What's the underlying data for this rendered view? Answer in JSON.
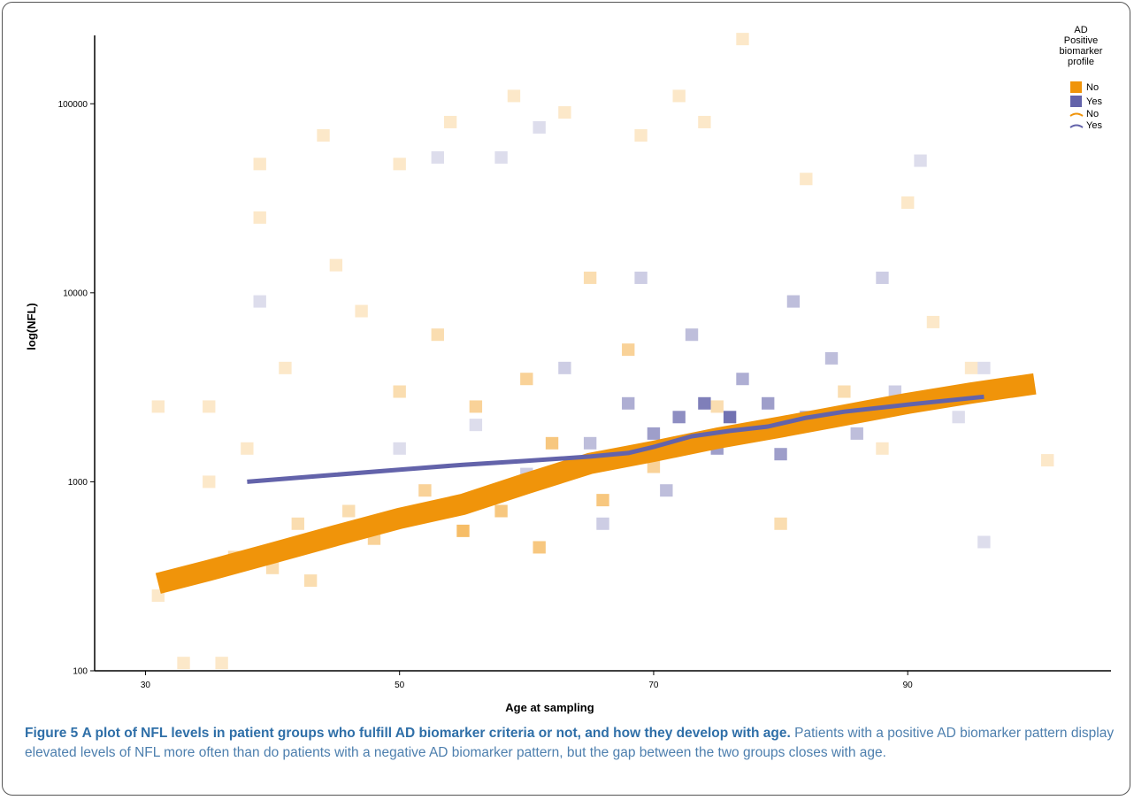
{
  "figure": {
    "label": "Figure 5",
    "title": "A plot of NFL levels in patient groups who fulfill AD biomarker criteria or not, and how they develop with age.",
    "body": "Patients with a positive AD biomarker pattern display elevated levels of NFL more often than do patients with a negative AD biomarker pattern, but the gap between the two groups closes with age."
  },
  "chart_data": {
    "type": "heatmap",
    "subtype": "binned-2d-density-with-trend-lines",
    "xlabel": "Age at sampling",
    "ylabel": "log(NFL)",
    "x_ticks": [
      30,
      50,
      70,
      90
    ],
    "y_ticks": [
      100,
      1000,
      10000,
      100000
    ],
    "xlim": [
      26,
      106
    ],
    "ylim": [
      100,
      230000
    ],
    "y_scale": "log",
    "grid": false,
    "legend": {
      "title": "AD\nPositive\nbiomarker\nprofile",
      "placement": "top-right",
      "fill_entries": [
        {
          "label": "No",
          "color": "#f0940a"
        },
        {
          "label": "Yes",
          "color": "#6363aa"
        }
      ],
      "line_entries": [
        {
          "label": "No",
          "color": "#f0940a"
        },
        {
          "label": "Yes",
          "color": "#6363aa"
        }
      ]
    },
    "series": [
      {
        "name": "No",
        "kind": "trend-line",
        "color": "#f0940a",
        "x": [
          31,
          35,
          40,
          45,
          50,
          55,
          60,
          65,
          70,
          75,
          80,
          85,
          90,
          95,
          100
        ],
        "y": [
          290,
          340,
          420,
          520,
          640,
          760,
          980,
          1250,
          1450,
          1700,
          1950,
          2250,
          2600,
          2950,
          3300
        ]
      },
      {
        "name": "Yes",
        "kind": "trend-line",
        "color": "#6363aa",
        "x": [
          38,
          45,
          50,
          55,
          60,
          65,
          68,
          70,
          73,
          76,
          79,
          82,
          85,
          90,
          96
        ],
        "y": [
          1000,
          1090,
          1160,
          1230,
          1290,
          1360,
          1420,
          1530,
          1740,
          1860,
          1960,
          2180,
          2350,
          2560,
          2820
        ]
      }
    ],
    "density_bins": {
      "x_bin_width": 1,
      "note": "2D binned counts, opacity scales with count",
      "No": [
        {
          "x": 31,
          "y": 2500,
          "c": 1
        },
        {
          "x": 31,
          "y": 250,
          "c": 1
        },
        {
          "x": 33,
          "y": 110,
          "c": 1
        },
        {
          "x": 35,
          "y": 1000,
          "c": 1
        },
        {
          "x": 35,
          "y": 2500,
          "c": 1
        },
        {
          "x": 36,
          "y": 110,
          "c": 1
        },
        {
          "x": 37,
          "y": 400,
          "c": 2
        },
        {
          "x": 38,
          "y": 1500,
          "c": 1
        },
        {
          "x": 39,
          "y": 48000,
          "c": 1
        },
        {
          "x": 39,
          "y": 25000,
          "c": 1
        },
        {
          "x": 40,
          "y": 350,
          "c": 2
        },
        {
          "x": 41,
          "y": 4000,
          "c": 1
        },
        {
          "x": 42,
          "y": 600,
          "c": 2
        },
        {
          "x": 43,
          "y": 300,
          "c": 2
        },
        {
          "x": 44,
          "y": 68000,
          "c": 1
        },
        {
          "x": 45,
          "y": 14000,
          "c": 1
        },
        {
          "x": 46,
          "y": 700,
          "c": 2
        },
        {
          "x": 47,
          "y": 8000,
          "c": 1
        },
        {
          "x": 48,
          "y": 500,
          "c": 3
        },
        {
          "x": 50,
          "y": 48000,
          "c": 1
        },
        {
          "x": 50,
          "y": 3000,
          "c": 2
        },
        {
          "x": 52,
          "y": 900,
          "c": 3
        },
        {
          "x": 53,
          "y": 6000,
          "c": 2
        },
        {
          "x": 54,
          "y": 80000,
          "c": 1
        },
        {
          "x": 55,
          "y": 550,
          "c": 5
        },
        {
          "x": 56,
          "y": 2500,
          "c": 3
        },
        {
          "x": 58,
          "y": 700,
          "c": 4
        },
        {
          "x": 59,
          "y": 110000,
          "c": 1
        },
        {
          "x": 60,
          "y": 3500,
          "c": 3
        },
        {
          "x": 61,
          "y": 450,
          "c": 4
        },
        {
          "x": 62,
          "y": 1600,
          "c": 4
        },
        {
          "x": 63,
          "y": 90000,
          "c": 1
        },
        {
          "x": 65,
          "y": 12000,
          "c": 2
        },
        {
          "x": 66,
          "y": 800,
          "c": 4
        },
        {
          "x": 68,
          "y": 5000,
          "c": 3
        },
        {
          "x": 69,
          "y": 68000,
          "c": 1
        },
        {
          "x": 70,
          "y": 1200,
          "c": 3
        },
        {
          "x": 72,
          "y": 110000,
          "c": 1
        },
        {
          "x": 74,
          "y": 80000,
          "c": 1
        },
        {
          "x": 75,
          "y": 2500,
          "c": 2
        },
        {
          "x": 77,
          "y": 220000,
          "c": 1
        },
        {
          "x": 80,
          "y": 600,
          "c": 2
        },
        {
          "x": 82,
          "y": 40000,
          "c": 1
        },
        {
          "x": 85,
          "y": 3000,
          "c": 2
        },
        {
          "x": 88,
          "y": 1500,
          "c": 1
        },
        {
          "x": 90,
          "y": 30000,
          "c": 1
        },
        {
          "x": 92,
          "y": 7000,
          "c": 1
        },
        {
          "x": 95,
          "y": 4000,
          "c": 1
        },
        {
          "x": 101,
          "y": 1300,
          "c": 1
        }
      ],
      "Yes": [
        {
          "x": 39,
          "y": 9000,
          "c": 1
        },
        {
          "x": 50,
          "y": 1500,
          "c": 1
        },
        {
          "x": 53,
          "y": 52000,
          "c": 1
        },
        {
          "x": 56,
          "y": 2000,
          "c": 1
        },
        {
          "x": 58,
          "y": 52000,
          "c": 1
        },
        {
          "x": 60,
          "y": 1100,
          "c": 2
        },
        {
          "x": 61,
          "y": 75000,
          "c": 1
        },
        {
          "x": 63,
          "y": 4000,
          "c": 2
        },
        {
          "x": 65,
          "y": 1600,
          "c": 3
        },
        {
          "x": 66,
          "y": 600,
          "c": 2
        },
        {
          "x": 68,
          "y": 2600,
          "c": 4
        },
        {
          "x": 69,
          "y": 12000,
          "c": 2
        },
        {
          "x": 70,
          "y": 1800,
          "c": 5
        },
        {
          "x": 71,
          "y": 900,
          "c": 3
        },
        {
          "x": 72,
          "y": 2200,
          "c": 6
        },
        {
          "x": 73,
          "y": 6000,
          "c": 3
        },
        {
          "x": 74,
          "y": 2600,
          "c": 7
        },
        {
          "x": 75,
          "y": 1500,
          "c": 5
        },
        {
          "x": 76,
          "y": 2200,
          "c": 8
        },
        {
          "x": 77,
          "y": 3500,
          "c": 4
        },
        {
          "x": 78,
          "y": 1800,
          "c": 6
        },
        {
          "x": 79,
          "y": 2600,
          "c": 5
        },
        {
          "x": 80,
          "y": 1400,
          "c": 5
        },
        {
          "x": 81,
          "y": 9000,
          "c": 3
        },
        {
          "x": 82,
          "y": 2200,
          "c": 4
        },
        {
          "x": 84,
          "y": 4500,
          "c": 3
        },
        {
          "x": 86,
          "y": 1800,
          "c": 3
        },
        {
          "x": 88,
          "y": 12000,
          "c": 2
        },
        {
          "x": 89,
          "y": 3000,
          "c": 2
        },
        {
          "x": 91,
          "y": 50000,
          "c": 1
        },
        {
          "x": 94,
          "y": 2200,
          "c": 1
        },
        {
          "x": 96,
          "y": 480,
          "c": 1
        },
        {
          "x": 96,
          "y": 4000,
          "c": 1
        }
      ]
    }
  }
}
